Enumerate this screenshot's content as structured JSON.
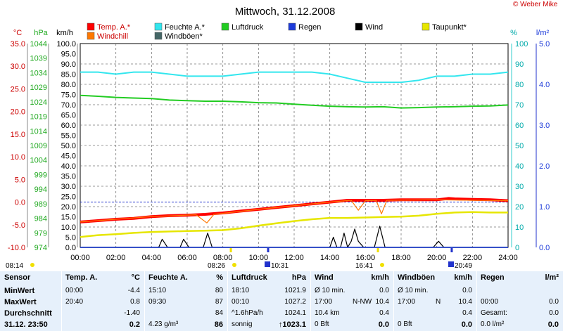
{
  "title": "Mittwoch, 31.12.2008",
  "copyright": "© Weber Mike",
  "legend": [
    {
      "name": "Temp. A.*",
      "color": "#ff0000"
    },
    {
      "name": "Feuchte A.*",
      "color": "#33e6ee"
    },
    {
      "name": "Luftdruck",
      "color": "#22cc22"
    },
    {
      "name": "Regen",
      "color": "#1d3bd9"
    },
    {
      "name": "Wind",
      "color": "#000000"
    },
    {
      "name": "Taupunkt*",
      "color": "#e6e600"
    },
    {
      "name": "Windchill",
      "color": "#ff7700"
    },
    {
      "name": "Windböen*",
      "color": "#446666"
    }
  ],
  "axes": {
    "temp": {
      "unit": "°C",
      "ticks": [
        "35.0",
        "30.0",
        "25.0",
        "20.0",
        "15.0",
        "10.0",
        "5.0",
        "0.0",
        "-5.0",
        "-10.0"
      ],
      "color": "#cc0000"
    },
    "pressure": {
      "unit": "hPa",
      "ticks": [
        "1044",
        "1039",
        "1034",
        "1029",
        "1024",
        "1019",
        "1014",
        "1009",
        "1004",
        "999",
        "994",
        "989",
        "984",
        "979",
        "974"
      ],
      "color": "#22aa22"
    },
    "wind": {
      "unit": "km/h",
      "ticks": [
        "100.0",
        "95.0",
        "90.0",
        "85.0",
        "80.0",
        "75.0",
        "70.0",
        "65.0",
        "60.0",
        "55.0",
        "50.0",
        "45.0",
        "40.0",
        "35.0",
        "30.0",
        "25.0",
        "20.0",
        "15.0",
        "10.0",
        "5.0",
        "0.0"
      ],
      "color": "#000000"
    },
    "humidity": {
      "unit": "%",
      "ticks": [
        "100",
        "90",
        "80",
        "70",
        "60",
        "50",
        "40",
        "30",
        "20",
        "10",
        "0"
      ],
      "color": "#00aaaa"
    },
    "rain": {
      "unit": "l/m²",
      "ticks": [
        "5.0",
        "4.0",
        "3.0",
        "2.0",
        "1.0",
        "0.0"
      ],
      "color": "#1d3bd9"
    },
    "time_ticks": [
      "00:00",
      "02:00",
      "04:00",
      "06:00",
      "08:00",
      "10:00",
      "12:00",
      "14:00",
      "16:00",
      "18:00",
      "20:00",
      "22:00",
      "24:00"
    ]
  },
  "events": [
    {
      "label": "08:14",
      "kind": "sunrise"
    },
    {
      "label": "08:26",
      "kind": "sunrise"
    },
    {
      "label": "10:31",
      "kind": "moonrise"
    },
    {
      "label": "16:41",
      "kind": "sunset"
    },
    {
      "label": "20:49",
      "kind": "moonset"
    }
  ],
  "chart_data": {
    "type": "line",
    "title": "Mittwoch, 31.12.2008",
    "x_unit": "hours",
    "xlim": [
      0,
      24
    ],
    "series": [
      {
        "name": "Feuchte A.*",
        "axis": "%",
        "color": "#33e6ee",
        "points": [
          [
            0,
            86
          ],
          [
            1,
            86
          ],
          [
            2,
            85
          ],
          [
            3,
            86
          ],
          [
            4,
            86
          ],
          [
            5,
            85
          ],
          [
            6,
            84
          ],
          [
            7,
            84
          ],
          [
            8,
            84
          ],
          [
            9,
            85
          ],
          [
            10,
            86
          ],
          [
            11,
            86
          ],
          [
            12,
            86
          ],
          [
            13,
            86
          ],
          [
            14,
            85
          ],
          [
            15,
            83
          ],
          [
            16,
            81
          ],
          [
            17,
            81
          ],
          [
            18,
            81
          ],
          [
            19,
            82
          ],
          [
            20,
            84
          ],
          [
            21,
            84
          ],
          [
            22,
            85
          ],
          [
            23,
            85
          ],
          [
            24,
            86
          ]
        ]
      },
      {
        "name": "Luftdruck",
        "axis": "hPa",
        "color": "#22cc22",
        "points": [
          [
            0,
            1026.2
          ],
          [
            1,
            1025.9
          ],
          [
            2,
            1025.5
          ],
          [
            3,
            1025.3
          ],
          [
            4,
            1025.1
          ],
          [
            5,
            1024.6
          ],
          [
            6,
            1024.4
          ],
          [
            7,
            1024.2
          ],
          [
            8,
            1024.2
          ],
          [
            9,
            1024.0
          ],
          [
            10,
            1023.7
          ],
          [
            11,
            1023.6
          ],
          [
            12,
            1023.2
          ],
          [
            13,
            1022.8
          ],
          [
            14,
            1022.5
          ],
          [
            15,
            1022.3
          ],
          [
            16,
            1022.2
          ],
          [
            17,
            1022.3
          ],
          [
            18,
            1021.9
          ],
          [
            19,
            1022.0
          ],
          [
            20,
            1022.2
          ],
          [
            21,
            1022.3
          ],
          [
            22,
            1022.5
          ],
          [
            23,
            1022.6
          ],
          [
            24,
            1022.9
          ]
        ]
      },
      {
        "name": "Temp. A.*",
        "axis": "°C",
        "color": "#ff0000",
        "points": [
          [
            0,
            -4.4
          ],
          [
            1,
            -4.1
          ],
          [
            2,
            -3.8
          ],
          [
            3,
            -3.6
          ],
          [
            4,
            -3.2
          ],
          [
            5,
            -3.0
          ],
          [
            6,
            -2.9
          ],
          [
            7,
            -2.7
          ],
          [
            8,
            -2.4
          ],
          [
            9,
            -2.0
          ],
          [
            10,
            -1.6
          ],
          [
            11,
            -1.2
          ],
          [
            12,
            -0.8
          ],
          [
            13,
            -0.4
          ],
          [
            14,
            0.0
          ],
          [
            15,
            0.4
          ],
          [
            16,
            0.4
          ],
          [
            17,
            0.4
          ],
          [
            18,
            0.5
          ],
          [
            19,
            0.5
          ],
          [
            20,
            0.5
          ],
          [
            20.67,
            0.8
          ],
          [
            21,
            0.7
          ],
          [
            22,
            0.6
          ],
          [
            23,
            0.5
          ],
          [
            24,
            0.3
          ]
        ]
      },
      {
        "name": "Taupunkt*",
        "axis": "°C",
        "color": "#e6e600",
        "points": [
          [
            0,
            -7.7
          ],
          [
            1,
            -7.3
          ],
          [
            2,
            -7.1
          ],
          [
            3,
            -6.8
          ],
          [
            4,
            -6.6
          ],
          [
            5,
            -6.5
          ],
          [
            6,
            -6.4
          ],
          [
            7,
            -6.3
          ],
          [
            8,
            -6.2
          ],
          [
            9,
            -5.8
          ],
          [
            10,
            -5.2
          ],
          [
            11,
            -4.7
          ],
          [
            12,
            -4.2
          ],
          [
            13,
            -3.8
          ],
          [
            14,
            -3.5
          ],
          [
            15,
            -3.5
          ],
          [
            16,
            -3.4
          ],
          [
            17,
            -3.3
          ],
          [
            18,
            -3.2
          ],
          [
            19,
            -3.0
          ],
          [
            20,
            -2.6
          ],
          [
            21,
            -2.3
          ],
          [
            22,
            -2.2
          ],
          [
            23,
            -2.3
          ],
          [
            24,
            -2.3
          ]
        ]
      },
      {
        "name": "Windchill",
        "axis": "°C",
        "color": "#ff7700",
        "points": [
          [
            0,
            -4.4
          ],
          [
            4,
            -3.2
          ],
          [
            6.5,
            -2.8
          ],
          [
            7.1,
            -4.6
          ],
          [
            7.5,
            -2.7
          ],
          [
            10,
            -1.6
          ],
          [
            14,
            0.0
          ],
          [
            15.2,
            0.4
          ],
          [
            15.6,
            -1.8
          ],
          [
            16,
            0.3
          ],
          [
            16.6,
            0.4
          ],
          [
            16.9,
            -2.6
          ],
          [
            17.2,
            0.4
          ],
          [
            20,
            0.5
          ],
          [
            24,
            0.3
          ]
        ]
      },
      {
        "name": "Wind",
        "axis": "km/h",
        "color": "#000000",
        "points": [
          [
            0,
            0
          ],
          [
            4.4,
            0
          ],
          [
            4.6,
            4
          ],
          [
            4.9,
            0
          ],
          [
            5.6,
            0
          ],
          [
            5.8,
            4
          ],
          [
            6.1,
            0
          ],
          [
            6.9,
            0
          ],
          [
            7.15,
            7
          ],
          [
            7.4,
            0
          ],
          [
            14,
            0
          ],
          [
            14.2,
            5
          ],
          [
            14.4,
            0
          ],
          [
            14.6,
            0
          ],
          [
            14.8,
            7
          ],
          [
            15.0,
            0
          ],
          [
            15.2,
            3
          ],
          [
            15.4,
            9
          ],
          [
            15.6,
            3
          ],
          [
            15.9,
            0
          ],
          [
            16.5,
            0
          ],
          [
            16.8,
            10.4
          ],
          [
            17.1,
            0
          ],
          [
            19.8,
            0
          ],
          [
            20.1,
            3
          ],
          [
            20.4,
            0
          ],
          [
            24,
            0
          ]
        ]
      },
      {
        "name": "Windböen*",
        "axis": "km/h",
        "color": "#446666",
        "points": [
          [
            0,
            0
          ],
          [
            24,
            0
          ]
        ]
      },
      {
        "name": "Regen",
        "axis": "l/m²",
        "color": "#1d3bd9",
        "points": [
          [
            0,
            0
          ],
          [
            24,
            0
          ]
        ]
      }
    ]
  },
  "stats": {
    "labels": {
      "header": "Sensor",
      "rows": [
        "MinWert",
        "MaxWert",
        "Durchschnitt",
        "31.12. 23:50"
      ]
    },
    "columns": [
      {
        "title": "Temp. A.",
        "unit": "°C",
        "rows": [
          [
            "00:00",
            "",
            "-4.4"
          ],
          [
            "20:40",
            "",
            "0.8"
          ],
          [
            "",
            "",
            "-1.40"
          ],
          [
            "",
            "",
            "0.2"
          ]
        ]
      },
      {
        "title": "Feuchte A.",
        "unit": "%",
        "rows": [
          [
            "15:10",
            "",
            "80"
          ],
          [
            "09:30",
            "",
            "87"
          ],
          [
            "",
            "",
            "84"
          ],
          [
            "4.23 g/m³",
            "",
            "86"
          ]
        ]
      },
      {
        "title": "Luftdruck",
        "unit": "hPa",
        "rows": [
          [
            "18:10",
            "",
            "1021.9"
          ],
          [
            "00:10",
            "",
            "1027.2"
          ],
          [
            "^1.6hPa/h",
            "",
            "1024.1"
          ],
          [
            "sonnig",
            "",
            "↑1023.1"
          ]
        ]
      },
      {
        "title": "Wind",
        "unit": "km/h",
        "rows": [
          [
            "Ø 10 min.",
            "",
            "0.0"
          ],
          [
            "17:00",
            "N-NW",
            "10.4"
          ],
          [
            "10.4 km",
            "",
            "0.4"
          ],
          [
            "0 Bft",
            "",
            "0.0"
          ]
        ]
      },
      {
        "title": "Windböen",
        "unit": "km/h",
        "rows": [
          [
            "Ø 10 min.",
            "",
            "0.0"
          ],
          [
            "17:00",
            "N",
            "10.4"
          ],
          [
            "",
            "",
            "0.4"
          ],
          [
            "0 Bft",
            "",
            "0.0"
          ]
        ]
      },
      {
        "title": "Regen",
        "unit": "l/m²",
        "rows": [
          [
            "",
            "",
            ""
          ],
          [
            "00:00",
            "",
            "0.0"
          ],
          [
            "Gesamt:",
            "",
            "0.0"
          ],
          [
            "0.0 l/m²",
            "",
            "0.0"
          ]
        ]
      }
    ]
  }
}
